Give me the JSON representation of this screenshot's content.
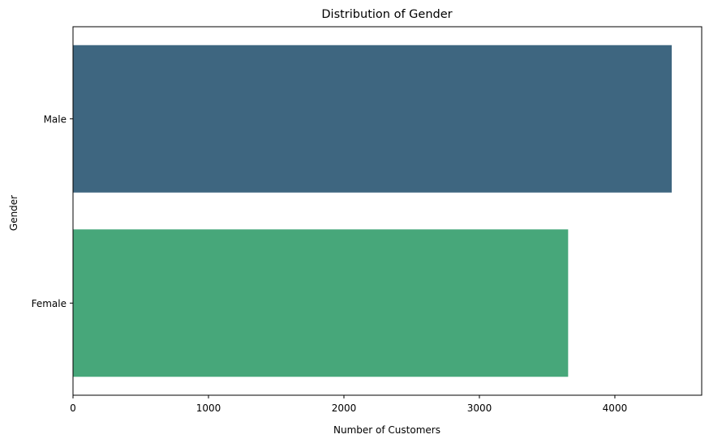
{
  "chart_data": {
    "type": "bar",
    "orientation": "horizontal",
    "title": "Distribution of Gender",
    "xlabel": "Number of Customers",
    "ylabel": "Gender",
    "categories": [
      "Male",
      "Female"
    ],
    "values": [
      4420,
      3655
    ],
    "colors": [
      "#3e6680",
      "#47a77a"
    ],
    "xlim": [
      0,
      4641
    ],
    "xticks": [
      0,
      1000,
      2000,
      3000,
      4000
    ],
    "xtick_labels": [
      "0",
      "1000",
      "2000",
      "3000",
      "4000"
    ],
    "grid": false,
    "legend": "none"
  }
}
